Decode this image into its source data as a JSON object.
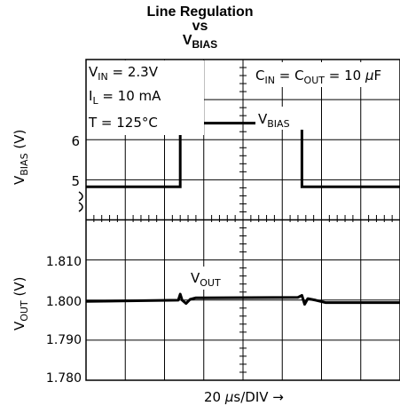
{
  "chart_data": {
    "type": "line",
    "title": {
      "line1": "Line Regulation",
      "line2": "vs",
      "line3_main": "V",
      "line3_sub": "BIAS"
    },
    "xlabel": {
      "main": "20 ",
      "mu": "μ",
      "rest": "s/DIV →"
    },
    "conditions": {
      "vin": {
        "main": "V",
        "sub": "IN",
        "rest": " = 2.3V"
      },
      "il": {
        "main": "I",
        "sub": "L",
        "rest": " = 10 mA"
      },
      "temp": "T = 125°C",
      "caps": {
        "c1": "C",
        "c1sub": "IN",
        "eq": " = C",
        "c2sub": "OUT",
        "rest": " = 10 ",
        "mu": "μ",
        "unit": "F"
      }
    },
    "upper_panel": {
      "ylabel": {
        "main": "V",
        "sub": "BIAS",
        "unit": " (V)"
      },
      "yticks": [
        "6",
        "5"
      ],
      "ylim": [
        4.5,
        7.0
      ],
      "trace_label": {
        "main": "V",
        "sub": "BIAS"
      },
      "series": [
        {
          "name": "VBIAS",
          "x": [
            0,
            2.4,
            2.4,
            5.5,
            5.5,
            8.0
          ],
          "y": [
            5.0,
            5.0,
            6.0,
            6.0,
            5.0,
            5.0
          ]
        }
      ]
    },
    "lower_panel": {
      "ylabel": {
        "main": "V",
        "sub": "OUT",
        "unit": " (V)"
      },
      "yticks": [
        "1.810",
        "1.800",
        "1.790",
        "1.780"
      ],
      "ylim": [
        1.78,
        1.82
      ],
      "trace_label": {
        "main": "V",
        "sub": "OUT"
      },
      "series": [
        {
          "name": "VOUT",
          "x": [
            0,
            2.35,
            2.4,
            2.45,
            2.55,
            2.65,
            2.8,
            3.0,
            5.4,
            5.5,
            5.57,
            5.65,
            5.85,
            6.1,
            8.0
          ],
          "y": [
            1.7995,
            1.7998,
            1.8013,
            1.7998,
            1.799,
            1.8,
            1.8004,
            1.8004,
            1.8005,
            1.801,
            1.7988,
            1.8002,
            1.7998,
            1.7992,
            1.7992
          ]
        }
      ]
    },
    "grid": true,
    "x_divisions": 8,
    "colors": {
      "trace": "#000000",
      "grid": "#000000",
      "background": "#ffffff"
    }
  }
}
